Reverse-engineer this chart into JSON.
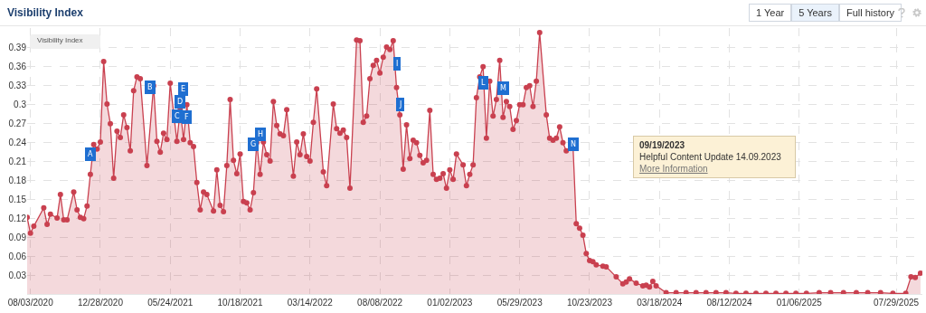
{
  "chart_data": {
    "type": "area",
    "title": "Visibility Index",
    "color": "#c9404f",
    "marker": "circle",
    "grid": true,
    "x": [
      "2020-07-27",
      "2020-08-03",
      "2020-08-10",
      "2020-08-31",
      "2020-09-07",
      "2020-09-14",
      "2020-09-28",
      "2020-10-05",
      "2020-10-12",
      "2020-10-19",
      "2020-11-02",
      "2020-11-09",
      "2020-11-16",
      "2020-11-23",
      "2020-11-30",
      "2020-12-07",
      "2020-12-14",
      "2020-12-21",
      "2020-12-28",
      "2021-01-04",
      "2021-01-11",
      "2021-01-18",
      "2021-01-25",
      "2021-02-01",
      "2021-02-08",
      "2021-02-15",
      "2021-02-22",
      "2021-03-01",
      "2021-03-08",
      "2021-03-15",
      "2021-03-22",
      "2021-04-05",
      "2021-04-19",
      "2021-04-26",
      "2021-05-03",
      "2021-05-10",
      "2021-05-17",
      "2021-05-24",
      "2021-06-07",
      "2021-06-14",
      "2021-06-21",
      "2021-06-28",
      "2021-07-05",
      "2021-07-12",
      "2021-07-19",
      "2021-07-26",
      "2021-08-02",
      "2021-08-09",
      "2021-08-23",
      "2021-08-30",
      "2021-09-06",
      "2021-09-13",
      "2021-09-20",
      "2021-09-27",
      "2021-10-04",
      "2021-10-11",
      "2021-10-18",
      "2021-10-25",
      "2021-11-01",
      "2021-11-08",
      "2021-11-15",
      "2021-11-22",
      "2021-11-29",
      "2021-12-06",
      "2021-12-13",
      "2021-12-20",
      "2021-12-27",
      "2022-01-03",
      "2022-01-10",
      "2022-01-17",
      "2022-01-24",
      "2022-02-07",
      "2022-02-14",
      "2022-02-21",
      "2022-02-28",
      "2022-03-07",
      "2022-03-14",
      "2022-03-21",
      "2022-03-28",
      "2022-04-11",
      "2022-04-18",
      "2022-05-02",
      "2022-05-09",
      "2022-05-16",
      "2022-05-23",
      "2022-05-30",
      "2022-06-06",
      "2022-06-20",
      "2022-06-27",
      "2022-07-04",
      "2022-07-11",
      "2022-07-18",
      "2022-07-25",
      "2022-08-01",
      "2022-08-08",
      "2022-08-15",
      "2022-08-22",
      "2022-08-29",
      "2022-09-05",
      "2022-09-12",
      "2022-09-19",
      "2022-09-26",
      "2022-10-03",
      "2022-10-10",
      "2022-10-17",
      "2022-10-24",
      "2022-10-31",
      "2022-11-07",
      "2022-11-14",
      "2022-11-21",
      "2022-11-28",
      "2022-12-05",
      "2022-12-12",
      "2022-12-19",
      "2022-12-26",
      "2023-01-02",
      "2023-01-09",
      "2023-01-16",
      "2023-01-30",
      "2023-02-06",
      "2023-02-13",
      "2023-02-20",
      "2023-02-27",
      "2023-03-06",
      "2023-03-13",
      "2023-03-20",
      "2023-03-27",
      "2023-04-03",
      "2023-04-10",
      "2023-04-17",
      "2023-04-24",
      "2023-05-01",
      "2023-05-08",
      "2023-05-15",
      "2023-05-22",
      "2023-05-29",
      "2023-06-05",
      "2023-06-12",
      "2023-06-19",
      "2023-06-26",
      "2023-07-03",
      "2023-07-10",
      "2023-07-24",
      "2023-07-31",
      "2023-08-07",
      "2023-08-14",
      "2023-08-21",
      "2023-08-28",
      "2023-09-04",
      "2023-09-18",
      "2023-09-25",
      "2023-10-02",
      "2023-10-09",
      "2023-10-16",
      "2023-10-23",
      "2023-10-30",
      "2023-11-06",
      "2023-11-20",
      "2023-11-27",
      "2023-12-18",
      "2024-01-01",
      "2024-01-08",
      "2024-01-15",
      "2024-01-29",
      "2024-02-12",
      "2024-02-19",
      "2024-02-26",
      "2024-03-04",
      "2024-03-11",
      "2024-04-01",
      "2024-04-22",
      "2024-05-13",
      "2024-06-03",
      "2024-06-24",
      "2024-07-15",
      "2024-08-05",
      "2024-08-26",
      "2024-09-16",
      "2024-10-07",
      "2024-10-28",
      "2024-11-18",
      "2024-12-09",
      "2024-12-30",
      "2025-01-21",
      "2025-02-17",
      "2025-03-13",
      "2025-04-09",
      "2025-05-06",
      "2025-05-30",
      "2025-06-26",
      "2025-07-22",
      "2025-08-18",
      "2025-08-29",
      "2025-09-07",
      "2025-09-18"
    ],
    "values": [
      0.121,
      0.096,
      0.107,
      0.136,
      0.11,
      0.126,
      0.12,
      0.157,
      0.117,
      0.117,
      0.161,
      0.133,
      0.121,
      0.119,
      0.139,
      0.189,
      0.236,
      0.229,
      0.24,
      0.367,
      0.3,
      0.269,
      0.183,
      0.257,
      0.247,
      0.283,
      0.263,
      0.226,
      0.321,
      0.343,
      0.34,
      0.203,
      0.329,
      0.241,
      0.224,
      0.254,
      0.244,
      0.333,
      0.241,
      0.291,
      0.244,
      0.299,
      0.239,
      0.233,
      0.176,
      0.133,
      0.161,
      0.157,
      0.131,
      0.196,
      0.14,
      0.13,
      0.203,
      0.307,
      0.211,
      0.19,
      0.221,
      0.146,
      0.144,
      0.133,
      0.16,
      0.239,
      0.189,
      0.24,
      0.22,
      0.21,
      0.304,
      0.266,
      0.253,
      0.25,
      0.291,
      0.186,
      0.24,
      0.22,
      0.253,
      0.217,
      0.21,
      0.271,
      0.324,
      0.193,
      0.171,
      0.3,
      0.261,
      0.254,
      0.259,
      0.247,
      0.167,
      0.401,
      0.4,
      0.271,
      0.281,
      0.34,
      0.361,
      0.369,
      0.349,
      0.374,
      0.39,
      0.386,
      0.4,
      0.326,
      0.283,
      0.197,
      0.267,
      0.214,
      0.243,
      0.239,
      0.219,
      0.207,
      0.211,
      0.29,
      0.189,
      0.181,
      0.183,
      0.19,
      0.167,
      0.196,
      0.181,
      0.221,
      0.204,
      0.171,
      0.189,
      0.204,
      0.31,
      0.343,
      0.359,
      0.246,
      0.336,
      0.281,
      0.307,
      0.369,
      0.279,
      0.304,
      0.296,
      0.26,
      0.274,
      0.299,
      0.299,
      0.326,
      0.329,
      0.296,
      0.336,
      0.413,
      0.283,
      0.246,
      0.243,
      0.246,
      0.264,
      0.239,
      0.226,
      0.236,
      0.111,
      0.104,
      0.093,
      0.064,
      0.053,
      0.051,
      0.046,
      0.044,
      0.043,
      0.027,
      0.016,
      0.019,
      0.024,
      0.017,
      0.013,
      0.014,
      0.011,
      0.02,
      0.013,
      0.002,
      0.002,
      0.002,
      0.002,
      0.002,
      0.002,
      0.002,
      0.001,
      0.001,
      0.001,
      0.001,
      0.001,
      0.001,
      0.001,
      0.001,
      0.002,
      0.002,
      0.002,
      0.002,
      0.002,
      0.002,
      0.001,
      0.001,
      0.027,
      0.026,
      0.033
    ],
    "xlim": [
      "2020-07-27",
      "2025-09-22"
    ],
    "xticks": [
      {
        "value": "2020-08-03",
        "label": "08/03/2020"
      },
      {
        "value": "2020-12-28",
        "label": "12/28/2020"
      },
      {
        "value": "2021-05-24",
        "label": "05/24/2021"
      },
      {
        "value": "2021-10-18",
        "label": "10/18/2021"
      },
      {
        "value": "2022-03-14",
        "label": "03/14/2022"
      },
      {
        "value": "2022-08-08",
        "label": "08/08/2022"
      },
      {
        "value": "2023-01-02",
        "label": "01/02/2023"
      },
      {
        "value": "2023-05-29",
        "label": "05/29/2023"
      },
      {
        "value": "2023-10-23",
        "label": "10/23/2023"
      },
      {
        "value": "2024-03-18",
        "label": "03/18/2024"
      },
      {
        "value": "2024-08-12",
        "label": "08/12/2024"
      },
      {
        "value": "2025-01-06",
        "label": "01/06/2025"
      },
      {
        "value": "2025-07-29",
        "label": "07/29/2025"
      }
    ],
    "ylim": [
      0,
      0.42
    ],
    "yticks": [
      {
        "value": 0.03,
        "label": "0.03"
      },
      {
        "value": 0.06,
        "label": "0.06"
      },
      {
        "value": 0.09,
        "label": "0.09"
      },
      {
        "value": 0.12,
        "label": "0.12"
      },
      {
        "value": 0.15,
        "label": "0.15"
      },
      {
        "value": 0.18,
        "label": "0.18"
      },
      {
        "value": 0.21,
        "label": "0.21"
      },
      {
        "value": 0.24,
        "label": "0.24"
      },
      {
        "value": 0.27,
        "label": "0.27"
      },
      {
        "value": 0.3,
        "label": "0.3"
      },
      {
        "value": 0.33,
        "label": "0.33"
      },
      {
        "value": 0.36,
        "label": "0.36"
      },
      {
        "value": 0.39,
        "label": "0.39"
      }
    ],
    "annotations": [
      "Visibility Index",
      "1 Year",
      "5 Years",
      "Full history",
      "09/19/2023",
      "Helpful Content Update 14.09.2023",
      "More Information",
      {
        "text": "A",
        "x": "2020-12-07",
        "y": 0.221
      },
      {
        "text": "B",
        "x": "2021-04-12",
        "y": 0.327
      },
      {
        "text": "C",
        "x": "2021-06-07",
        "y": 0.281
      },
      {
        "text": "D",
        "x": "2021-06-14",
        "y": 0.303
      },
      {
        "text": "E",
        "x": "2021-06-21",
        "y": 0.324
      },
      {
        "text": "F",
        "x": "2021-06-28",
        "y": 0.28
      },
      {
        "text": "G",
        "x": "2021-11-15",
        "y": 0.236
      },
      {
        "text": "H",
        "x": "2021-11-29",
        "y": 0.252
      },
      {
        "text": "I",
        "x": "2022-09-12",
        "y": 0.364
      },
      {
        "text": "J",
        "x": "2022-09-19",
        "y": 0.3
      },
      {
        "text": "L",
        "x": "2023-03-13",
        "y": 0.333
      },
      {
        "text": "M",
        "x": "2023-04-24",
        "y": 0.325
      },
      {
        "text": "N",
        "x": "2023-09-18",
        "y": 0.236
      }
    ]
  }
}
